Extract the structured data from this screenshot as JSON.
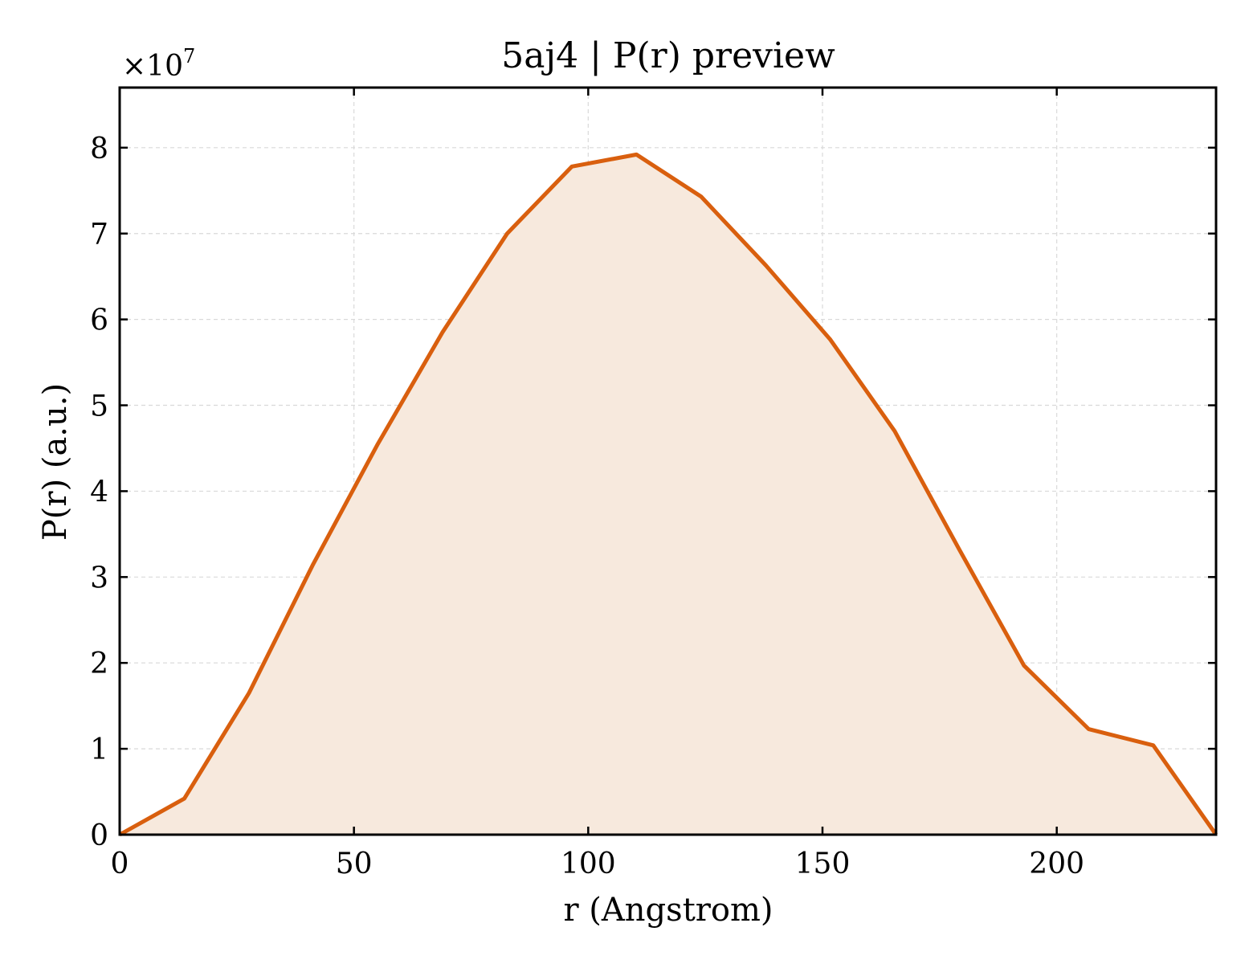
{
  "chart_data": {
    "type": "area",
    "title": "5aj4 | P(r) preview",
    "xlabel": "r (Angstrom)",
    "ylabel": "P(r) (a.u.)",
    "y_multiplier_label": "×10",
    "y_multiplier_exponent": "7",
    "xlim": [
      0,
      234
    ],
    "ylim": [
      0,
      8.7
    ],
    "xticks": [
      0,
      50,
      100,
      150,
      200
    ],
    "xtick_labels": [
      "0",
      "50",
      "100",
      "150",
      "200"
    ],
    "yticks": [
      0,
      1,
      2,
      3,
      4,
      5,
      6,
      7,
      8
    ],
    "ytick_labels": [
      "0",
      "1",
      "2",
      "3",
      "4",
      "5",
      "6",
      "7",
      "8"
    ],
    "grid": true,
    "line_color": "#d95f0e",
    "fill_color": "#f7e9dd",
    "x": [
      0,
      13.8,
      27.6,
      41.3,
      55.1,
      68.9,
      82.7,
      96.5,
      110.3,
      124.1,
      137.9,
      151.6,
      165.4,
      179.2,
      193.0,
      206.8,
      220.6,
      234.0
    ],
    "y": [
      0.0,
      0.42,
      1.65,
      3.15,
      4.55,
      5.85,
      7.0,
      7.78,
      7.92,
      7.43,
      6.63,
      5.77,
      4.7,
      3.32,
      1.97,
      1.23,
      1.04,
      0.0
    ]
  }
}
